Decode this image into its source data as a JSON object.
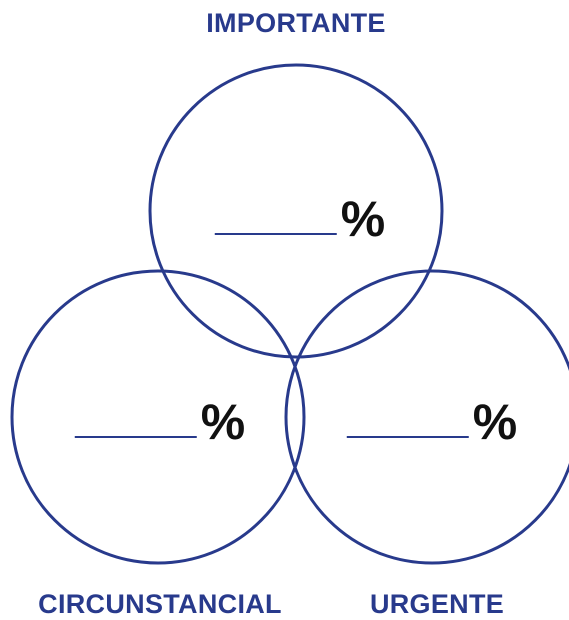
{
  "colors": {
    "accent": "#283a8c",
    "text": "#111111",
    "background": "#ffffff"
  },
  "labels": {
    "top": "IMPORTANTE",
    "bottom_left": "CIRCUNSTANCIAL",
    "bottom_right": "URGENTE"
  },
  "circles": {
    "top": {
      "percent_symbol": "%"
    },
    "left": {
      "percent_symbol": "%"
    },
    "right": {
      "percent_symbol": "%"
    }
  }
}
